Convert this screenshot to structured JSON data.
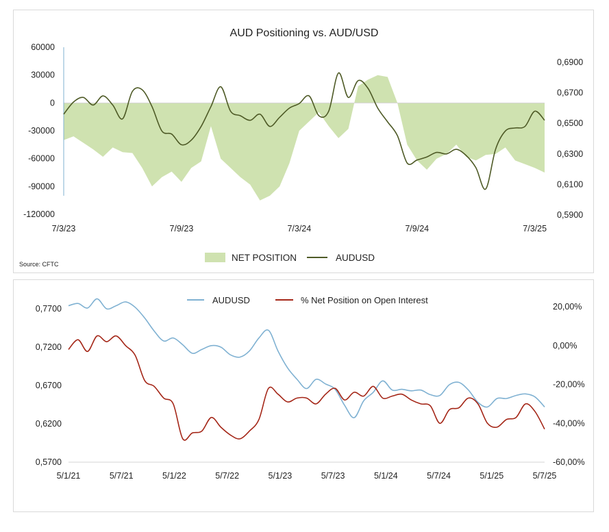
{
  "colors": {
    "area_fill": "#cfe2b0",
    "audusd_top": "#4e5a26",
    "audusd_bottom": "#7fb1d2",
    "net_pct": "#a42617",
    "left_axis_line": "#7fb1d2",
    "frame": "#d9d9d9"
  },
  "chart_data": [
    {
      "type": "area+line",
      "title": "AUD Positioning vs. AUD/USD",
      "source": "Source: CFTC",
      "x_ticks": [
        "7/3/23",
        "7/9/23",
        "7/3/24",
        "7/9/24",
        "7/3/25"
      ],
      "y_left_ticks": [
        "60000",
        "30000",
        "0",
        "-30000",
        "-60000",
        "-90000",
        "-120000"
      ],
      "y_left_lim": [
        -120000,
        60000
      ],
      "y_right_ticks": [
        "0,6900",
        "0,6700",
        "0,6500",
        "0,6300",
        "0,6100",
        "0,5900"
      ],
      "y_right_lim": [
        0.585,
        0.6935
      ],
      "legend": [
        "NET POSITION",
        "AUDUSD"
      ],
      "x_months": [
        0,
        0.5,
        1,
        1.5,
        2,
        2.5,
        3,
        3.5,
        4,
        4.5,
        5,
        5.5,
        6,
        6.5,
        7,
        7.5,
        8,
        8.5,
        9,
        9.5,
        10,
        10.5,
        11,
        11.5,
        12,
        12.5,
        13,
        13.5,
        14,
        14.5,
        15,
        15.5,
        16,
        16.5,
        17,
        17.5,
        18,
        18.5,
        19,
        19.5,
        20,
        20.5,
        21,
        21.5,
        22,
        22.5,
        23,
        23.5,
        24,
        24.5
      ],
      "series": [
        {
          "name": "NET POSITION",
          "axis": "left",
          "values": [
            -40000,
            -36000,
            -43000,
            -50000,
            -58000,
            -48000,
            -53000,
            -54000,
            -70000,
            -90000,
            -80000,
            -74000,
            -85000,
            -70000,
            -63000,
            -25000,
            -60000,
            -70000,
            -80000,
            -88000,
            -105000,
            -100000,
            -90000,
            -65000,
            -30000,
            -20000,
            -10000,
            -25000,
            -38000,
            -28000,
            18000,
            25000,
            30000,
            28000,
            0,
            -45000,
            -62000,
            -72000,
            -60000,
            -55000,
            -45000,
            -58000,
            -62000,
            -56000,
            -55000,
            -48000,
            -62000,
            -66000,
            -70000,
            -75000
          ]
        },
        {
          "name": "AUDUSD",
          "axis": "right",
          "values": [
            0.656,
            0.664,
            0.667,
            0.662,
            0.668,
            0.662,
            0.653,
            0.671,
            0.672,
            0.661,
            0.645,
            0.643,
            0.636,
            0.639,
            0.648,
            0.661,
            0.674,
            0.658,
            0.655,
            0.652,
            0.656,
            0.648,
            0.654,
            0.66,
            0.663,
            0.668,
            0.655,
            0.658,
            0.683,
            0.667,
            0.678,
            0.673,
            0.66,
            0.651,
            0.642,
            0.624,
            0.626,
            0.628,
            0.631,
            0.63,
            0.633,
            0.629,
            0.621,
            0.607,
            0.633,
            0.645,
            0.647,
            0.648,
            0.658,
            0.652
          ]
        }
      ]
    },
    {
      "type": "line",
      "x_ticks": [
        "5/1/21",
        "5/7/21",
        "5/1/22",
        "5/7/22",
        "5/1/23",
        "5/7/23",
        "5/1/24",
        "5/7/24",
        "5/1/25",
        "5/7/25"
      ],
      "y_left_ticks": [
        "0,7700",
        "0,7200",
        "0,6700",
        "0,6200",
        "0,5700"
      ],
      "y_left_lim": [
        0.57,
        0.7755
      ],
      "y_right_ticks": [
        "20,00%",
        "0,00%",
        "-20,00%",
        "-40,00%",
        "-60,00%"
      ],
      "y_right_lim": [
        -60,
        21
      ],
      "legend": [
        "AUDUSD",
        "% Net Position on Open Interest"
      ],
      "x_months": [
        0,
        1,
        2,
        3,
        4,
        5,
        6,
        7,
        8,
        9,
        10,
        11,
        12,
        13,
        14,
        15,
        16,
        17,
        18,
        19,
        20,
        21,
        22,
        23,
        24,
        25,
        26,
        27,
        28,
        29,
        30,
        31,
        32,
        33,
        34,
        35,
        36,
        37,
        38,
        39,
        40,
        41,
        42,
        43,
        44,
        45,
        46,
        47,
        48,
        49,
        50
      ],
      "series": [
        {
          "name": "AUDUSD",
          "axis": "left",
          "values": [
            0.774,
            0.777,
            0.771,
            0.783,
            0.77,
            0.774,
            0.779,
            0.772,
            0.758,
            0.741,
            0.728,
            0.732,
            0.723,
            0.712,
            0.717,
            0.722,
            0.72,
            0.71,
            0.707,
            0.715,
            0.732,
            0.742,
            0.715,
            0.693,
            0.678,
            0.666,
            0.678,
            0.672,
            0.665,
            0.644,
            0.628,
            0.65,
            0.661,
            0.676,
            0.664,
            0.665,
            0.663,
            0.664,
            0.658,
            0.657,
            0.671,
            0.674,
            0.664,
            0.648,
            0.642,
            0.653,
            0.653,
            0.657,
            0.659,
            0.655,
            0.642
          ]
        },
        {
          "name": "% Net Position on Open Interest",
          "axis": "right",
          "values": [
            -2,
            3,
            -3,
            5,
            2,
            5,
            0,
            -5,
            -18,
            -21,
            -27,
            -30,
            -48,
            -45,
            -44,
            -37,
            -42,
            -46,
            -48,
            -44,
            -38,
            -22,
            -25,
            -29,
            -27,
            -27,
            -30,
            -25,
            -22,
            -28,
            -24,
            -26,
            -21,
            -27,
            -26,
            -25,
            -28,
            -30,
            -31,
            -40,
            -33,
            -32,
            -27,
            -30,
            -40,
            -42,
            -38,
            -37,
            -30,
            -34,
            -43
          ]
        }
      ]
    }
  ]
}
